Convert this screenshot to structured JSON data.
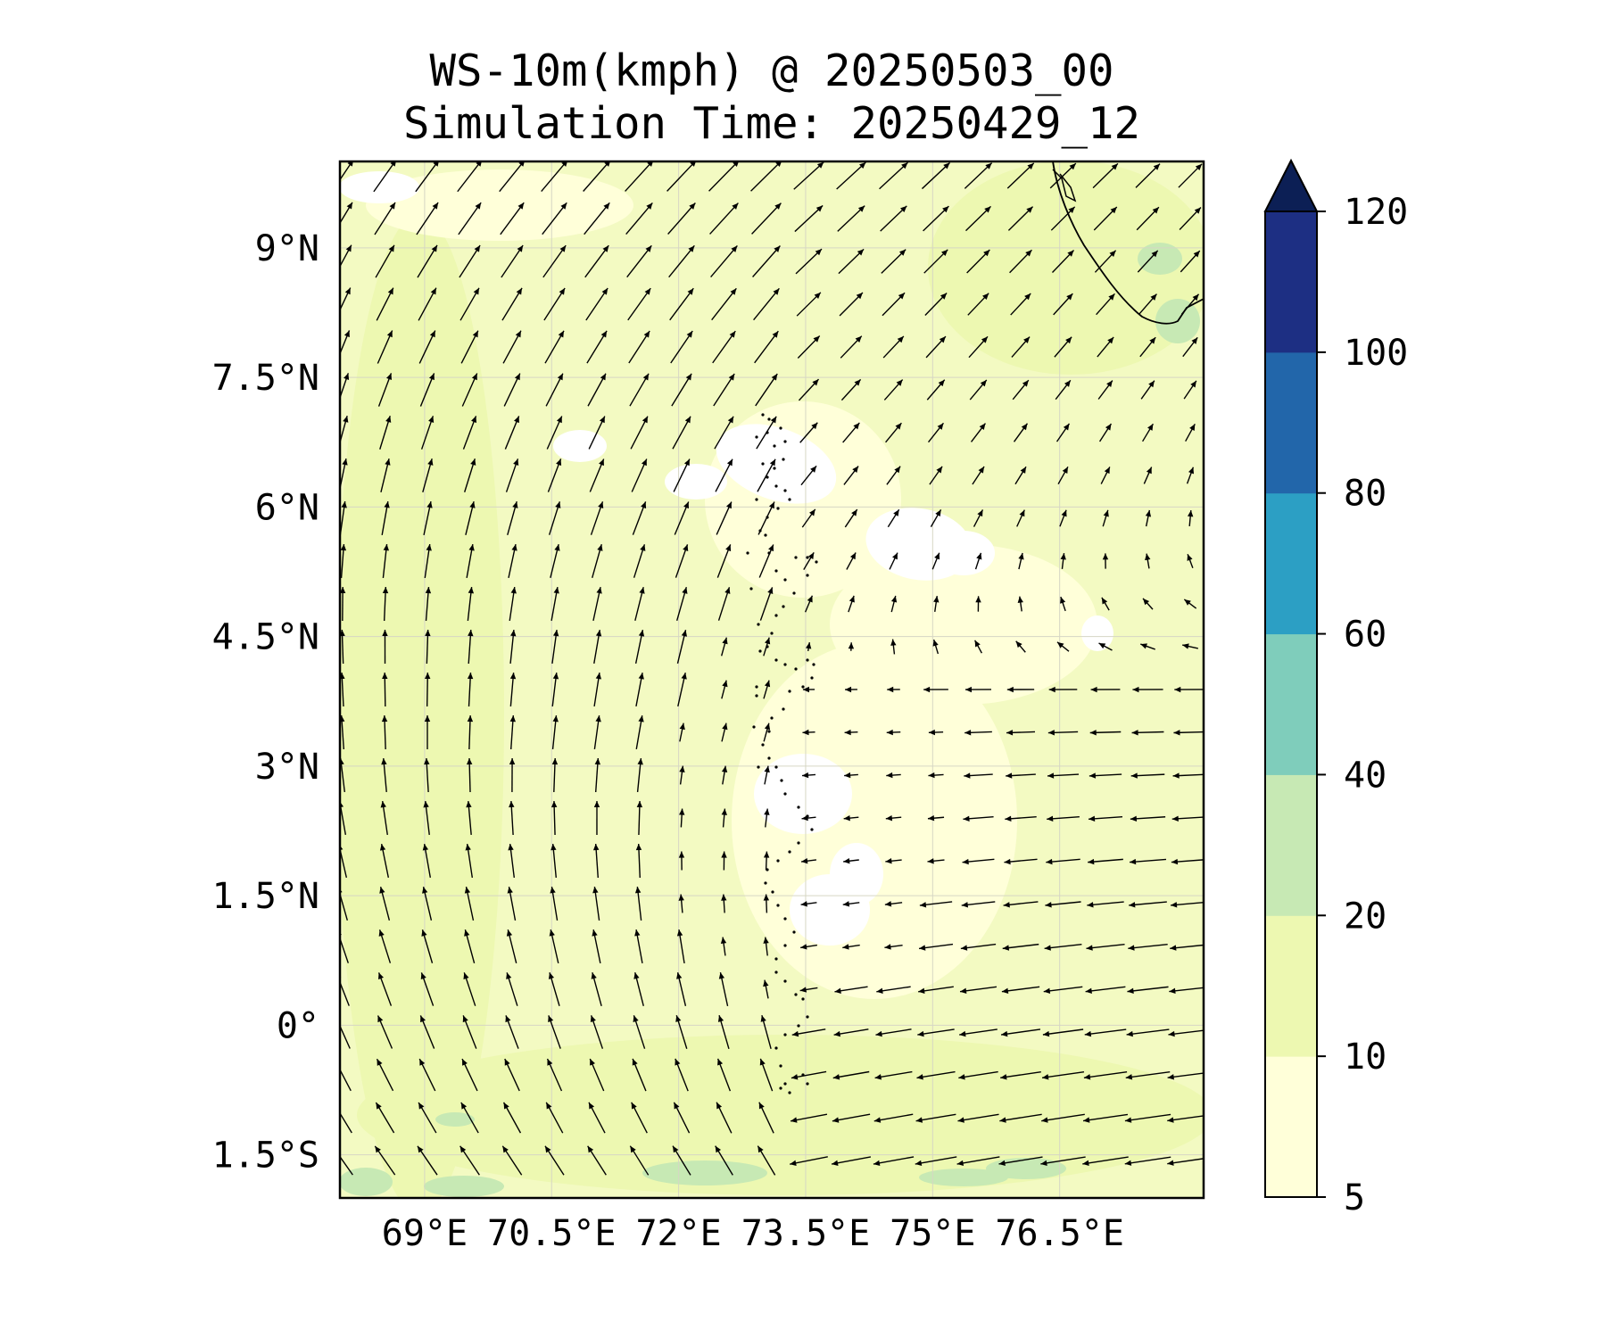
{
  "title": {
    "line1": "WS-10m(kmph) @ 20250503_00",
    "line2": "Simulation Time: 20250429_12"
  },
  "map": {
    "extent": {
      "lon_min": 68.0,
      "lon_max": 78.2,
      "lat_min": -2.0,
      "lat_max": 10.0
    },
    "lat_ticks": [
      {
        "value": 9.0,
        "label": "9°N"
      },
      {
        "value": 7.5,
        "label": "7.5°N"
      },
      {
        "value": 6.0,
        "label": "6°N"
      },
      {
        "value": 4.5,
        "label": "4.5°N"
      },
      {
        "value": 3.0,
        "label": "3°N"
      },
      {
        "value": 1.5,
        "label": "1.5°N"
      },
      {
        "value": 0.0,
        "label": "0°"
      },
      {
        "value": -1.5,
        "label": "1.5°S"
      }
    ],
    "lon_ticks": [
      {
        "value": 69.0,
        "label": "69°E"
      },
      {
        "value": 70.5,
        "label": "70.5°E"
      },
      {
        "value": 72.0,
        "label": "72°E"
      },
      {
        "value": 73.5,
        "label": "73.5°E"
      },
      {
        "value": 75.0,
        "label": "75°E"
      },
      {
        "value": 76.5,
        "label": "76.5°E"
      }
    ],
    "gridlines": true,
    "field": "wind speed at 10 m (kmph) with wind direction vectors",
    "colors": {
      "below_10": "#ffffd9",
      "10_to_20": "#edf8b1",
      "20_to_40": "#c7e9b4",
      "calm": "#ffffff"
    }
  },
  "colorbar": {
    "levels": [
      5,
      10,
      20,
      40,
      60,
      80,
      100,
      120
    ],
    "labels": [
      "5",
      "10",
      "20",
      "40",
      "60",
      "80",
      "100",
      "120"
    ],
    "colors": [
      "#ffffd9",
      "#edf8b1",
      "#c7e9b4",
      "#7fcdbb",
      "#2c9fc4",
      "#2266aa",
      "#1d2f83"
    ],
    "extend_color": "#0c1f55",
    "extend": "max"
  }
}
